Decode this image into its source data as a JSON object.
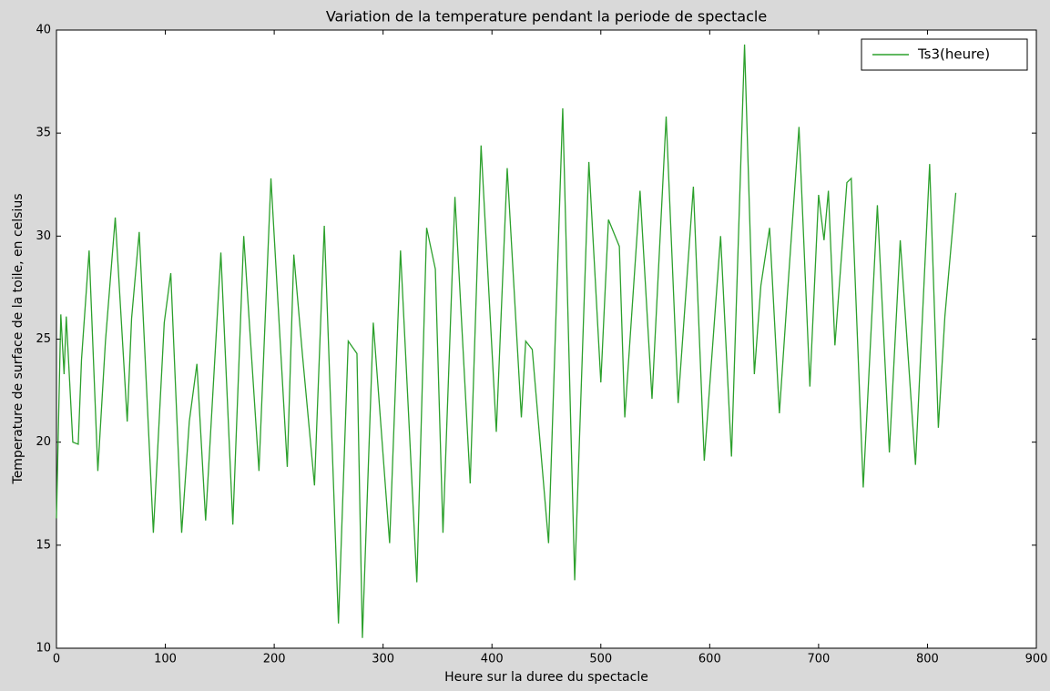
{
  "chart_data": {
    "type": "line",
    "title": "Variation de la temperature pendant la periode de spectacle",
    "xlabel": "Heure sur la duree du spectacle",
    "ylabel": "Temperature de surface de la toile, en celsius",
    "x": [
      0,
      4,
      7,
      9,
      15,
      20,
      23,
      30,
      38,
      45,
      54,
      65,
      69,
      76,
      89,
      99,
      105,
      115,
      122,
      129,
      137,
      151,
      162,
      172,
      186,
      197,
      212,
      218,
      226,
      237,
      246,
      259,
      268,
      276,
      281,
      291,
      306,
      316,
      331,
      340,
      348,
      355,
      366,
      380,
      390,
      404,
      414,
      427,
      431,
      437,
      452,
      465,
      476,
      489,
      500,
      507,
      517,
      522,
      536,
      547,
      560,
      571,
      585,
      595,
      610,
      620,
      632,
      641,
      647,
      655,
      664,
      671,
      682,
      692,
      700,
      705,
      709,
      715,
      726,
      730,
      741,
      754,
      765,
      775,
      789,
      802,
      810,
      816,
      826
    ],
    "series": [
      {
        "name": "Ts3(heure)",
        "color": "#2ca02c",
        "values": [
          16.3,
          26.2,
          23.3,
          26.1,
          20,
          19.9,
          24,
          29.3,
          18.6,
          24.9,
          30.9,
          21,
          26,
          30.2,
          15.6,
          25.8,
          28.2,
          15.6,
          21,
          23.8,
          16.2,
          29.2,
          16,
          30,
          18.6,
          32.8,
          18.8,
          29.1,
          24.2,
          17.9,
          30.5,
          11.2,
          24.9,
          24.3,
          10.5,
          25.8,
          15.1,
          29.3,
          13.2,
          30.4,
          28.4,
          15.6,
          31.9,
          18,
          34.4,
          20.5,
          33.3,
          21.2,
          24.9,
          24.5,
          15.1,
          36.2,
          13.3,
          33.6,
          22.9,
          30.8,
          29.5,
          21.2,
          32.2,
          22.1,
          35.8,
          21.9,
          32.4,
          19.1,
          30,
          19.3,
          39.3,
          23.3,
          27.6,
          30.4,
          21.4,
          26.9,
          35.3,
          22.7,
          32,
          29.8,
          32.2,
          24.7,
          32.6,
          32.8,
          17.8,
          31.5,
          19.5,
          29.8,
          18.9,
          33.5,
          20.7,
          26.1,
          32.1
        ]
      }
    ],
    "xlim": [
      0,
      900
    ],
    "xticks": [
      0,
      100,
      200,
      300,
      400,
      500,
      600,
      700,
      800,
      900
    ],
    "ylim": [
      10,
      40
    ],
    "yticks": [
      10,
      15,
      20,
      25,
      30,
      35,
      40
    ],
    "legend": "upper right"
  }
}
